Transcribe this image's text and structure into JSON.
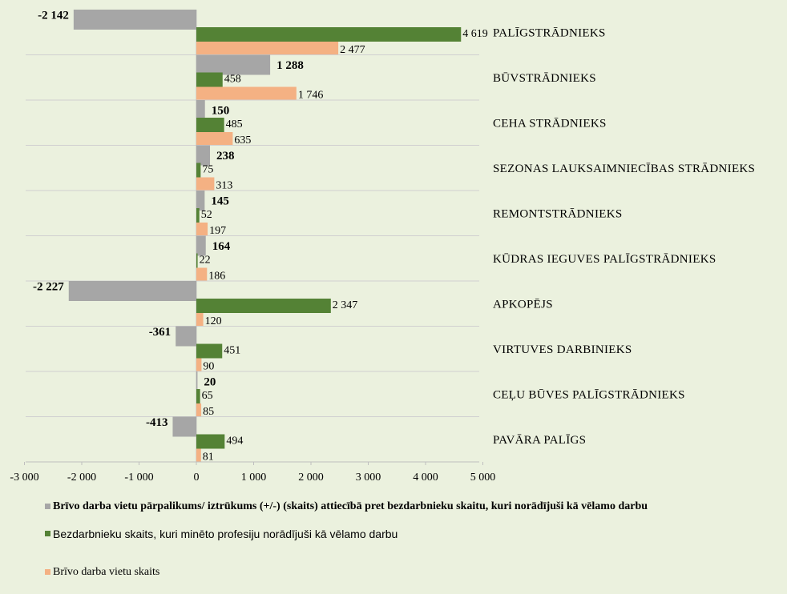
{
  "chart_data": {
    "type": "barh",
    "categories": [
      "PALĪGSTRĀDNIEKS",
      "BŪVSTRĀDNIEKS",
      "CEHA STRĀDNIEKS",
      "SEZONAS LAUKSAIMNIECĪBAS STRĀDNIEKS",
      "REMONTSTRĀDNIEKS",
      "KŪDRAS IEGUVES PALĪGSTRĀDNIEKS",
      "APKOPĒJS",
      "VIRTUVES DARBINIEKS",
      "CEĻU BŪVES PALĪGSTRĀDNIEKS",
      "PAVĀRA PALĪGS"
    ],
    "series": [
      {
        "name": "Brīvo darba vietu pārpalikums/ iztrūkums (+/-) (skaits) attiecībā pret bezdarbnieku skaitu, kuri norādījuši kā vēlamo darbu",
        "color": "#a6a6a6",
        "values": [
          -2142,
          1288,
          150,
          238,
          145,
          164,
          -2227,
          -361,
          20,
          -413
        ],
        "value_labels": [
          "-2 142",
          "1 288",
          "150",
          "238",
          "145",
          "164",
          "-2 227",
          "-361",
          "20",
          "-413"
        ]
      },
      {
        "name": "Bezdarbnieku skaits, kuri minēto profesiju norādījuši kā vēlamo darbu",
        "color": "#548235",
        "values": [
          4619,
          458,
          485,
          75,
          52,
          22,
          2347,
          451,
          65,
          494
        ],
        "value_labels": [
          "4 619",
          "458",
          "485",
          "75",
          "52",
          "22",
          "2 347",
          "451",
          "65",
          "494"
        ]
      },
      {
        "name": "Brīvo darba vietu skaits",
        "color": "#f4b183",
        "values": [
          2477,
          1746,
          635,
          313,
          197,
          186,
          120,
          90,
          85,
          81
        ],
        "value_labels": [
          "2 477",
          "1 746",
          "635",
          "313",
          "197",
          "186",
          "120",
          "90",
          "85",
          "81"
        ]
      }
    ],
    "xlim": [
      -3000,
      5000
    ],
    "xticks": [
      {
        "value": -3000,
        "label": "-3 000"
      },
      {
        "value": -2000,
        "label": "-2 000"
      },
      {
        "value": -1000,
        "label": "-1 000"
      },
      0,
      {
        "value": 1000,
        "label": "1 000"
      },
      {
        "value": 2000,
        "label": "2 000"
      },
      {
        "value": 3000,
        "label": "3 000"
      },
      {
        "value": 4000,
        "label": "4 000"
      },
      {
        "value": 5000,
        "label": "5 000"
      }
    ],
    "legend": "bottom"
  }
}
